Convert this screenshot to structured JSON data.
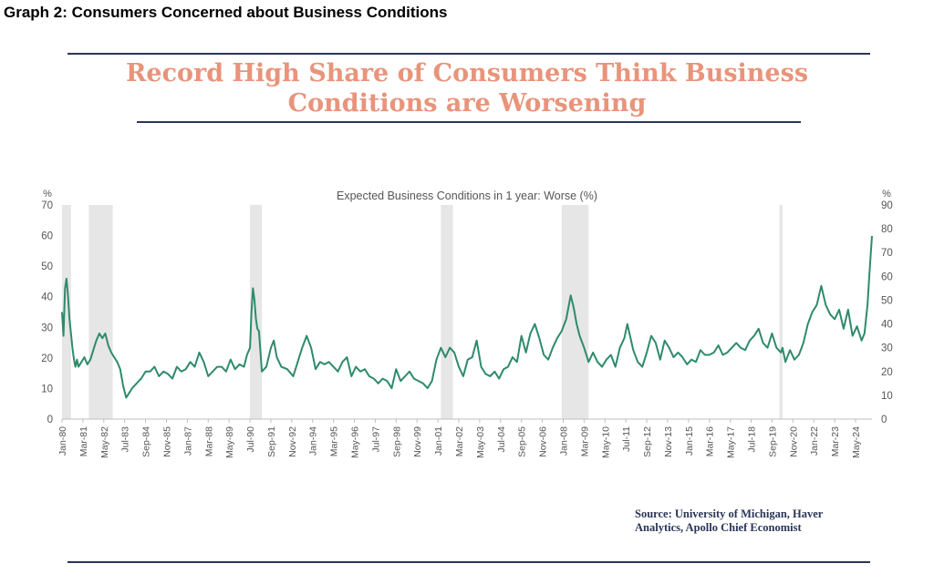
{
  "header": {
    "graph_label": "Graph 2:  Consumers Concerned about Business Conditions",
    "headline_line1": "Record High Share of Consumers Think Business",
    "headline_line2": "Conditions are Worsening"
  },
  "source": {
    "line1": "Source:   University of Michigan, Haver",
    "line2": "Analytics, Apollo Chief Economist"
  },
  "colors": {
    "line": "#2e8b6a",
    "recession": "#e6e6e6",
    "rule": "#2a3558",
    "headline": "#e8947b"
  },
  "chart_data": {
    "type": "line",
    "title": "Expected Business Conditions in 1 year: Worse (%)",
    "y_left_label": "%",
    "y_right_label": "%",
    "ylim_left": [
      0,
      70
    ],
    "ylim_right": [
      0,
      90
    ],
    "y_left_ticks": [
      0,
      10,
      20,
      30,
      40,
      50,
      60,
      70
    ],
    "y_right_ticks": [
      0,
      10,
      20,
      30,
      40,
      50,
      60,
      70,
      80,
      90
    ],
    "x_range": [
      "1980-01",
      "2025-04"
    ],
    "x_tick_labels": [
      "Jan-80",
      "Mar-81",
      "May-82",
      "Jul-83",
      "Sep-84",
      "Nov-85",
      "Jan-87",
      "Mar-88",
      "May-89",
      "Jul-90",
      "Sep-91",
      "Nov-92",
      "Jan-94",
      "Mar-95",
      "May-96",
      "Jul-97",
      "Sep-98",
      "Nov-99",
      "Jan-01",
      "Mar-02",
      "May-03",
      "Jul-04",
      "Sep-05",
      "Nov-06",
      "Jan-08",
      "Mar-09",
      "May-10",
      "Jul-11",
      "Sep-12",
      "Nov-13",
      "Jan-15",
      "Mar-16",
      "May-17",
      "Jul-18",
      "Sep-19",
      "Nov-20",
      "Jan-22",
      "Mar-23",
      "May-24"
    ],
    "recessions": [
      [
        "1980-01",
        "1980-07"
      ],
      [
        "1981-07",
        "1982-11"
      ],
      [
        "1990-07",
        "1991-03"
      ],
      [
        "2001-03",
        "2001-11"
      ],
      [
        "2007-12",
        "2009-06"
      ],
      [
        "2020-02",
        "2020-04"
      ]
    ],
    "series": [
      {
        "axis": "right",
        "points": [
          [
            "1980-01",
            45
          ],
          [
            "1980-02",
            35
          ],
          [
            "1980-03",
            55
          ],
          [
            "1980-04",
            59
          ],
          [
            "1980-05",
            52
          ],
          [
            "1980-06",
            42
          ],
          [
            "1980-07",
            36
          ],
          [
            "1980-08",
            30
          ],
          [
            "1980-09",
            25
          ],
          [
            "1980-10",
            22
          ],
          [
            "1980-11",
            25
          ],
          [
            "1980-12",
            22
          ],
          [
            "1981-02",
            24
          ],
          [
            "1981-04",
            26
          ],
          [
            "1981-06",
            23
          ],
          [
            "1981-08",
            25
          ],
          [
            "1981-10",
            29
          ],
          [
            "1981-12",
            33
          ],
          [
            "1982-02",
            36
          ],
          [
            "1982-04",
            34
          ],
          [
            "1982-06",
            36
          ],
          [
            "1982-08",
            31
          ],
          [
            "1982-10",
            28
          ],
          [
            "1982-12",
            26
          ],
          [
            "1983-02",
            24
          ],
          [
            "1983-04",
            21
          ],
          [
            "1983-06",
            14
          ],
          [
            "1983-08",
            9
          ],
          [
            "1983-10",
            11
          ],
          [
            "1983-12",
            13
          ],
          [
            "1984-03",
            15
          ],
          [
            "1984-06",
            17
          ],
          [
            "1984-09",
            20
          ],
          [
            "1984-12",
            20
          ],
          [
            "1985-03",
            22
          ],
          [
            "1985-06",
            18
          ],
          [
            "1985-09",
            20
          ],
          [
            "1985-12",
            19
          ],
          [
            "1986-03",
            17
          ],
          [
            "1986-06",
            22
          ],
          [
            "1986-09",
            20
          ],
          [
            "1986-12",
            21
          ],
          [
            "1987-03",
            24
          ],
          [
            "1987-06",
            22
          ],
          [
            "1987-09",
            28
          ],
          [
            "1987-12",
            24
          ],
          [
            "1988-03",
            18
          ],
          [
            "1988-06",
            20
          ],
          [
            "1988-09",
            22
          ],
          [
            "1988-12",
            22
          ],
          [
            "1989-03",
            20
          ],
          [
            "1989-06",
            25
          ],
          [
            "1989-09",
            21
          ],
          [
            "1989-12",
            23
          ],
          [
            "1990-03",
            22
          ],
          [
            "1990-05",
            27
          ],
          [
            "1990-07",
            30
          ],
          [
            "1990-08",
            45
          ],
          [
            "1990-09",
            55
          ],
          [
            "1990-10",
            50
          ],
          [
            "1990-11",
            42
          ],
          [
            "1990-12",
            38
          ],
          [
            "1991-01",
            37
          ],
          [
            "1991-03",
            20
          ],
          [
            "1991-06",
            22
          ],
          [
            "1991-09",
            30
          ],
          [
            "1991-11",
            33
          ],
          [
            "1992-01",
            26
          ],
          [
            "1992-04",
            22
          ],
          [
            "1992-08",
            21
          ],
          [
            "1992-12",
            18
          ],
          [
            "1993-03",
            24
          ],
          [
            "1993-06",
            30
          ],
          [
            "1993-09",
            35
          ],
          [
            "1993-12",
            30
          ],
          [
            "1994-03",
            21
          ],
          [
            "1994-06",
            24
          ],
          [
            "1994-09",
            23
          ],
          [
            "1994-12",
            24
          ],
          [
            "1995-03",
            22
          ],
          [
            "1995-06",
            20
          ],
          [
            "1995-09",
            24
          ],
          [
            "1995-12",
            26
          ],
          [
            "1996-03",
            18
          ],
          [
            "1996-06",
            22
          ],
          [
            "1996-09",
            20
          ],
          [
            "1996-12",
            21
          ],
          [
            "1997-03",
            18
          ],
          [
            "1997-06",
            17
          ],
          [
            "1997-09",
            15
          ],
          [
            "1997-12",
            17
          ],
          [
            "1998-03",
            16
          ],
          [
            "1998-06",
            13
          ],
          [
            "1998-09",
            21
          ],
          [
            "1998-12",
            16
          ],
          [
            "1999-03",
            18
          ],
          [
            "1999-06",
            20
          ],
          [
            "1999-09",
            17
          ],
          [
            "1999-12",
            16
          ],
          [
            "2000-03",
            15
          ],
          [
            "2000-06",
            13
          ],
          [
            "2000-09",
            16
          ],
          [
            "2000-12",
            25
          ],
          [
            "2001-03",
            30
          ],
          [
            "2001-06",
            26
          ],
          [
            "2001-09",
            30
          ],
          [
            "2001-12",
            28
          ],
          [
            "2002-03",
            22
          ],
          [
            "2002-06",
            18
          ],
          [
            "2002-09",
            25
          ],
          [
            "2002-12",
            26
          ],
          [
            "2003-03",
            33
          ],
          [
            "2003-06",
            22
          ],
          [
            "2003-09",
            19
          ],
          [
            "2003-12",
            18
          ],
          [
            "2004-03",
            20
          ],
          [
            "2004-06",
            17
          ],
          [
            "2004-09",
            21
          ],
          [
            "2004-12",
            22
          ],
          [
            "2005-03",
            26
          ],
          [
            "2005-06",
            24
          ],
          [
            "2005-09",
            35
          ],
          [
            "2005-12",
            28
          ],
          [
            "2006-03",
            36
          ],
          [
            "2006-06",
            40
          ],
          [
            "2006-09",
            34
          ],
          [
            "2006-12",
            27
          ],
          [
            "2007-03",
            25
          ],
          [
            "2007-06",
            30
          ],
          [
            "2007-09",
            34
          ],
          [
            "2007-12",
            37
          ],
          [
            "2008-03",
            42
          ],
          [
            "2008-06",
            52
          ],
          [
            "2008-08",
            47
          ],
          [
            "2008-10",
            40
          ],
          [
            "2008-12",
            35
          ],
          [
            "2009-03",
            30
          ],
          [
            "2009-06",
            24
          ],
          [
            "2009-09",
            28
          ],
          [
            "2009-12",
            24
          ],
          [
            "2010-03",
            22
          ],
          [
            "2010-06",
            25
          ],
          [
            "2010-09",
            27
          ],
          [
            "2010-12",
            22
          ],
          [
            "2011-03",
            30
          ],
          [
            "2011-06",
            34
          ],
          [
            "2011-08",
            40
          ],
          [
            "2011-12",
            29
          ],
          [
            "2012-03",
            24
          ],
          [
            "2012-06",
            22
          ],
          [
            "2012-09",
            28
          ],
          [
            "2012-12",
            35
          ],
          [
            "2013-03",
            32
          ],
          [
            "2013-06",
            25
          ],
          [
            "2013-09",
            33
          ],
          [
            "2013-12",
            30
          ],
          [
            "2014-03",
            26
          ],
          [
            "2014-06",
            28
          ],
          [
            "2014-09",
            26
          ],
          [
            "2014-12",
            23
          ],
          [
            "2015-03",
            25
          ],
          [
            "2015-06",
            24
          ],
          [
            "2015-09",
            29
          ],
          [
            "2015-12",
            27
          ],
          [
            "2016-03",
            27
          ],
          [
            "2016-06",
            28
          ],
          [
            "2016-09",
            31
          ],
          [
            "2016-12",
            27
          ],
          [
            "2017-03",
            28
          ],
          [
            "2017-06",
            30
          ],
          [
            "2017-09",
            32
          ],
          [
            "2017-12",
            30
          ],
          [
            "2018-03",
            29
          ],
          [
            "2018-06",
            33
          ],
          [
            "2018-09",
            35
          ],
          [
            "2018-12",
            38
          ],
          [
            "2019-03",
            32
          ],
          [
            "2019-06",
            30
          ],
          [
            "2019-09",
            36
          ],
          [
            "2019-12",
            30
          ],
          [
            "2020-03",
            28
          ],
          [
            "2020-04",
            30
          ],
          [
            "2020-06",
            24
          ],
          [
            "2020-09",
            29
          ],
          [
            "2020-12",
            25
          ],
          [
            "2021-03",
            27
          ],
          [
            "2021-06",
            32
          ],
          [
            "2021-09",
            40
          ],
          [
            "2021-12",
            45
          ],
          [
            "2022-03",
            48
          ],
          [
            "2022-06",
            56
          ],
          [
            "2022-09",
            48
          ],
          [
            "2022-12",
            44
          ],
          [
            "2023-03",
            42
          ],
          [
            "2023-06",
            46
          ],
          [
            "2023-09",
            38
          ],
          [
            "2023-12",
            46
          ],
          [
            "2024-03",
            35
          ],
          [
            "2024-06",
            39
          ],
          [
            "2024-09",
            33
          ],
          [
            "2024-11",
            36
          ],
          [
            "2025-01",
            48
          ],
          [
            "2025-02",
            58
          ],
          [
            "2025-03",
            68
          ],
          [
            "2025-04",
            77
          ]
        ]
      }
    ]
  }
}
